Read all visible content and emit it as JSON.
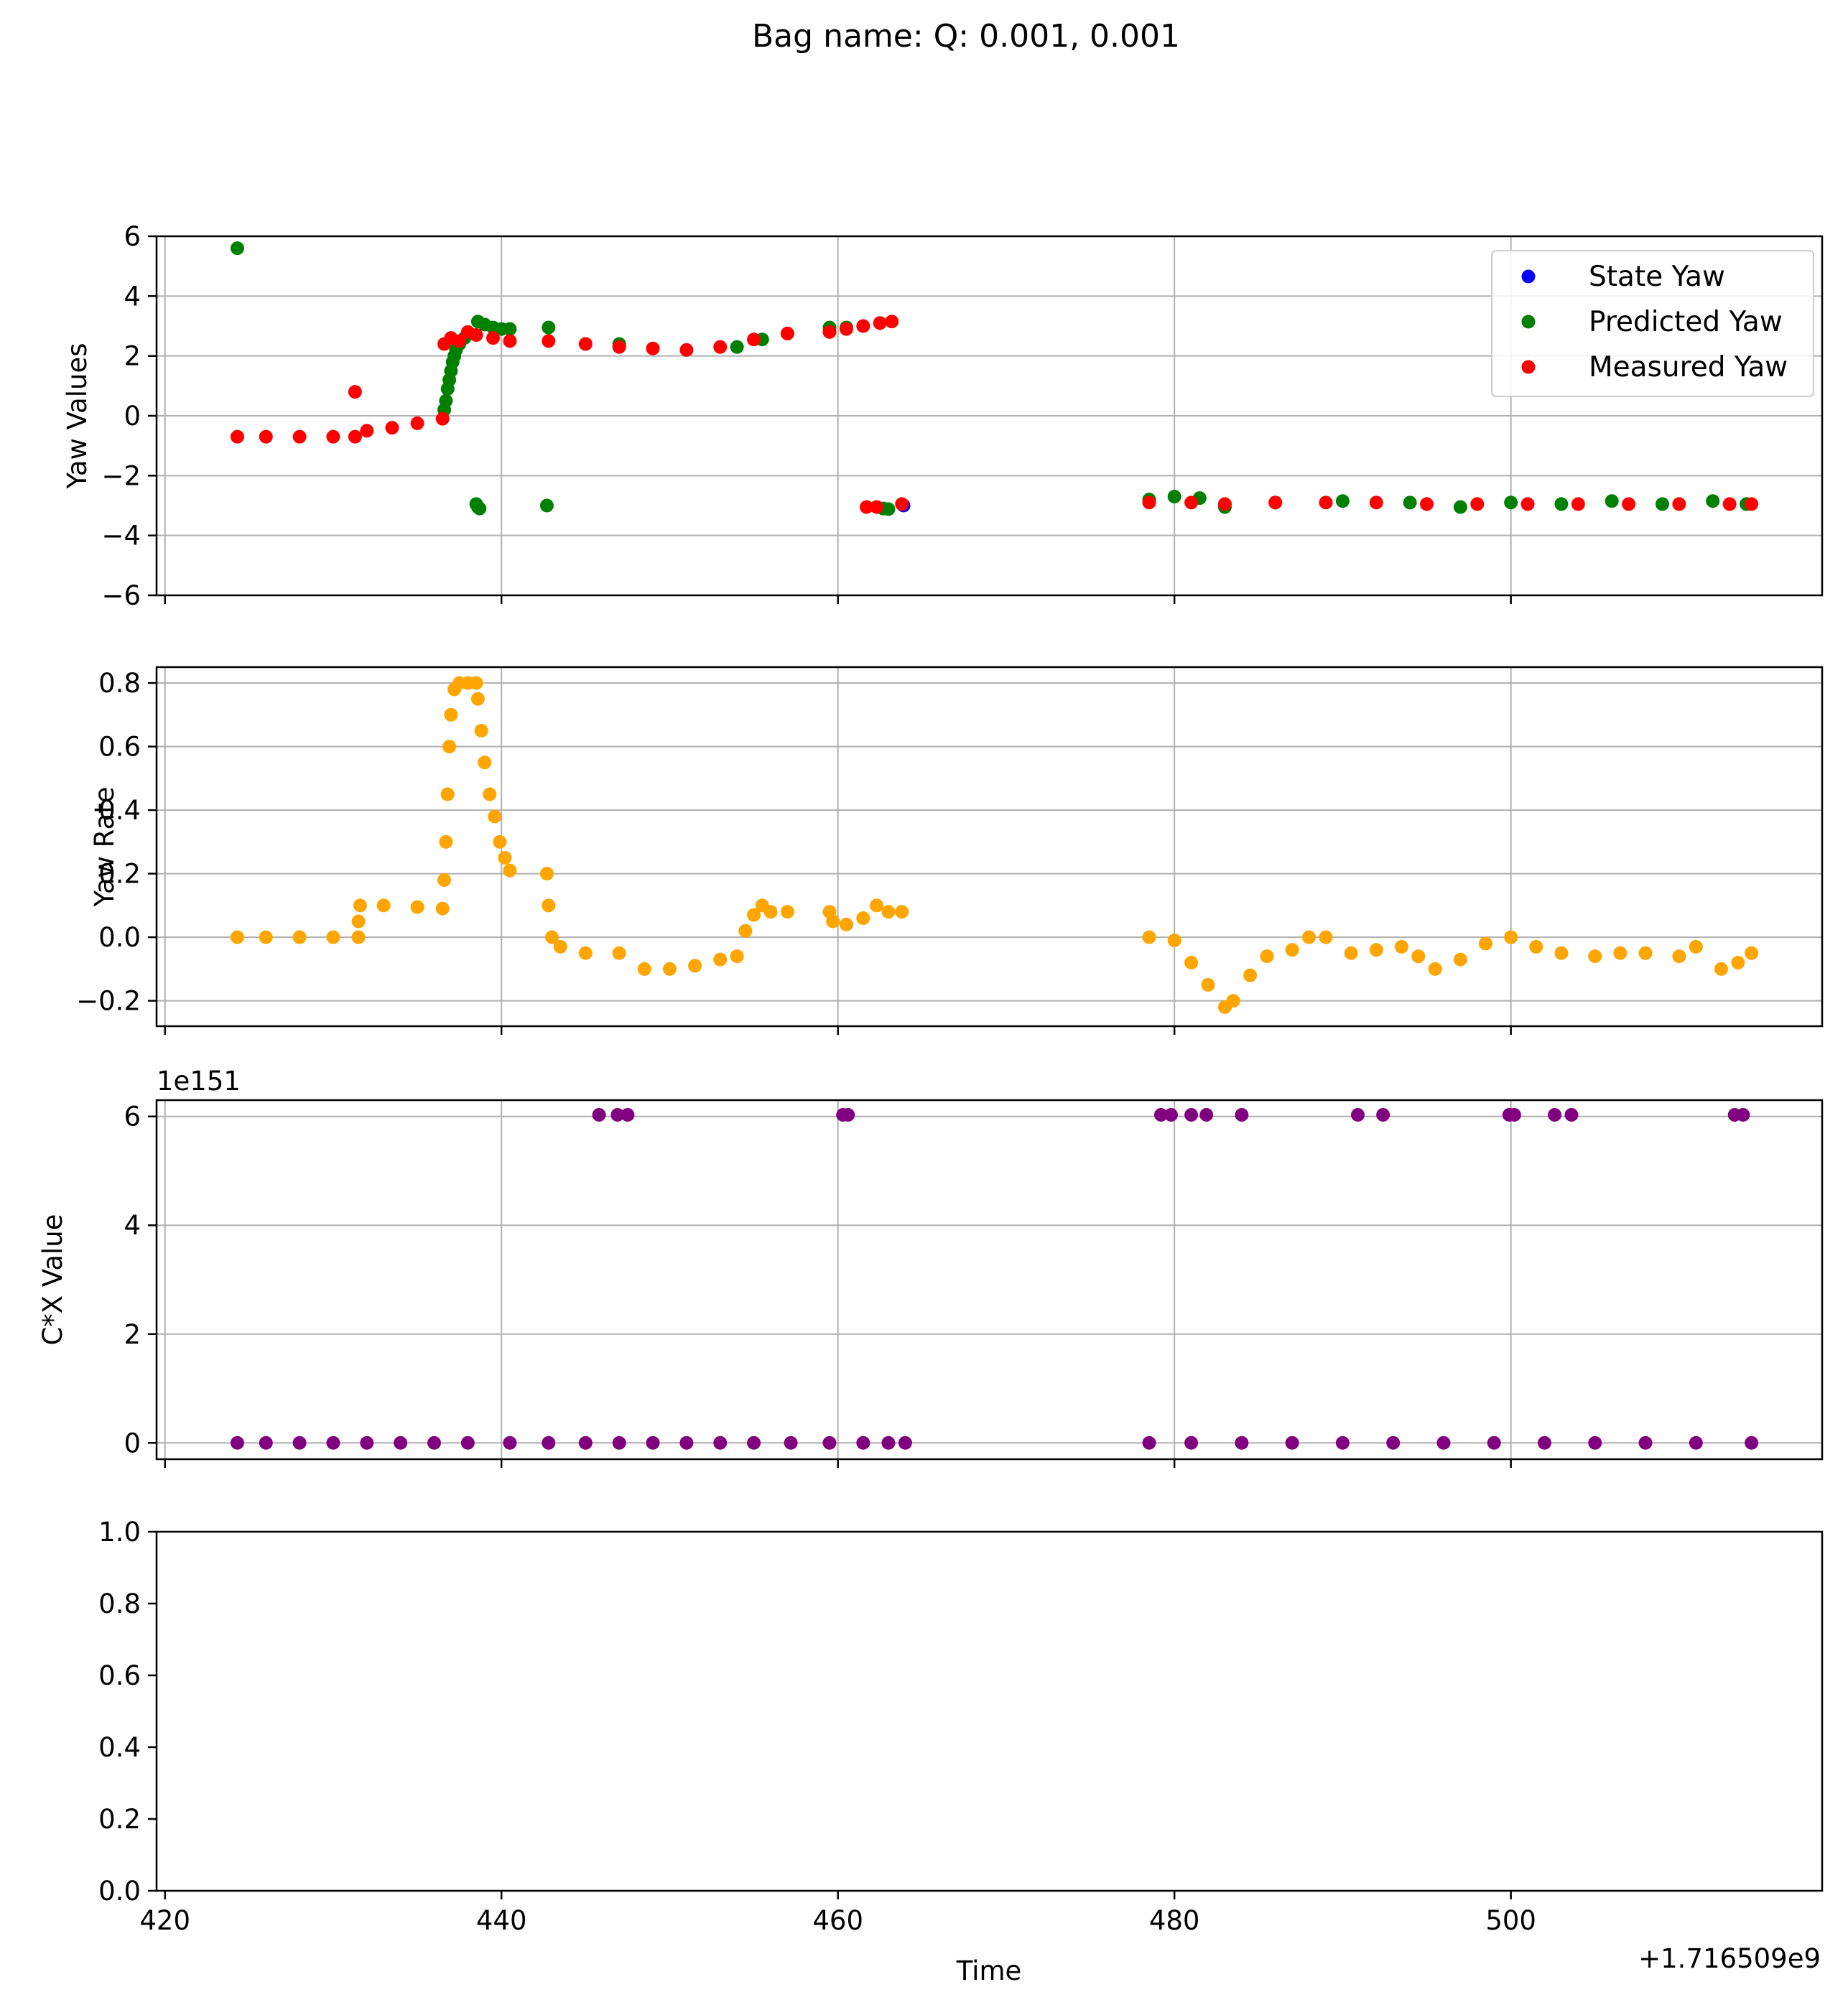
{
  "figure": {
    "title": "Bag name: Q: 0.001, 0.001",
    "xlabel": "Time",
    "x_offset_label": "+1.716509e9"
  },
  "chart_data": [
    {
      "type": "scatter",
      "ylabel": "Yaw Values",
      "xlim": [
        419.5,
        518.5
      ],
      "ylim": [
        -6,
        6
      ],
      "xticks": [
        420,
        440,
        460,
        480,
        500
      ],
      "yticks": [
        6,
        4,
        2,
        0,
        -2,
        -4,
        -6
      ],
      "ytick_labels": [
        "6",
        "4",
        "2",
        "0",
        "−2",
        "−4",
        "−6"
      ],
      "grid": true,
      "legend": {
        "placement": "top-right"
      },
      "series": [
        {
          "name": "State Yaw",
          "color": "#0000ff",
          "points": [
            [
              463.9,
              -3.0
            ]
          ]
        },
        {
          "name": "Predicted Yaw",
          "color": "#008000",
          "points": [
            [
              424.3,
              5.6
            ],
            [
              436.6,
              0.2
            ],
            [
              436.7,
              0.5
            ],
            [
              436.8,
              0.9
            ],
            [
              436.9,
              1.2
            ],
            [
              437.0,
              1.5
            ],
            [
              437.1,
              1.8
            ],
            [
              437.2,
              2.0
            ],
            [
              437.3,
              2.2
            ],
            [
              437.5,
              2.4
            ],
            [
              437.8,
              2.6
            ],
            [
              438.1,
              2.75
            ],
            [
              438.6,
              3.15
            ],
            [
              439.0,
              3.05
            ],
            [
              439.5,
              2.95
            ],
            [
              440.0,
              2.9
            ],
            [
              440.5,
              2.9
            ],
            [
              438.5,
              -2.95
            ],
            [
              438.6,
              -3.05
            ],
            [
              438.7,
              -3.1
            ],
            [
              442.7,
              -3.0
            ],
            [
              442.8,
              2.95
            ],
            [
              447.0,
              2.4
            ],
            [
              454.0,
              2.3
            ],
            [
              455.5,
              2.55
            ],
            [
              457.0,
              2.75
            ],
            [
              459.5,
              2.95
            ],
            [
              460.5,
              2.95
            ],
            [
              462.5,
              3.1
            ],
            [
              462.7,
              -3.1
            ],
            [
              463.0,
              -3.12
            ],
            [
              478.5,
              -2.8
            ],
            [
              480.0,
              -2.7
            ],
            [
              481.5,
              -2.75
            ],
            [
              483.0,
              -3.05
            ],
            [
              486.0,
              -2.9
            ],
            [
              490.0,
              -2.85
            ],
            [
              494.0,
              -2.9
            ],
            [
              497.0,
              -3.05
            ],
            [
              500.0,
              -2.9
            ],
            [
              503.0,
              -2.95
            ],
            [
              506.0,
              -2.85
            ],
            [
              509.0,
              -2.95
            ],
            [
              512.0,
              -2.85
            ],
            [
              514.0,
              -2.95
            ]
          ]
        },
        {
          "name": "Measured Yaw",
          "color": "#ff0000",
          "points": [
            [
              424.3,
              -0.7
            ],
            [
              426.0,
              -0.7
            ],
            [
              428.0,
              -0.7
            ],
            [
              430.0,
              -0.7
            ],
            [
              431.3,
              -0.7
            ],
            [
              431.3,
              0.8
            ],
            [
              432.0,
              -0.5
            ],
            [
              433.5,
              -0.4
            ],
            [
              435.0,
              -0.25
            ],
            [
              436.5,
              -0.1
            ],
            [
              436.6,
              2.4
            ],
            [
              437.0,
              2.6
            ],
            [
              437.5,
              2.5
            ],
            [
              438.0,
              2.8
            ],
            [
              438.5,
              2.7
            ],
            [
              439.5,
              2.6
            ],
            [
              440.5,
              2.5
            ],
            [
              442.8,
              2.5
            ],
            [
              445.0,
              2.4
            ],
            [
              447.0,
              2.3
            ],
            [
              449.0,
              2.25
            ],
            [
              451.0,
              2.2
            ],
            [
              453.0,
              2.3
            ],
            [
              455.0,
              2.55
            ],
            [
              457.0,
              2.75
            ],
            [
              459.5,
              2.8
            ],
            [
              460.5,
              2.9
            ],
            [
              461.5,
              3.0
            ],
            [
              462.5,
              3.1
            ],
            [
              463.2,
              3.15
            ],
            [
              461.7,
              -3.05
            ],
            [
              462.3,
              -3.05
            ],
            [
              463.8,
              -2.95
            ],
            [
              478.5,
              -2.9
            ],
            [
              481.0,
              -2.9
            ],
            [
              483.0,
              -2.95
            ],
            [
              486.0,
              -2.9
            ],
            [
              489.0,
              -2.9
            ],
            [
              492.0,
              -2.9
            ],
            [
              495.0,
              -2.95
            ],
            [
              498.0,
              -2.95
            ],
            [
              501.0,
              -2.95
            ],
            [
              504.0,
              -2.95
            ],
            [
              507.0,
              -2.95
            ],
            [
              510.0,
              -2.95
            ],
            [
              513.0,
              -2.95
            ],
            [
              514.3,
              -2.95
            ]
          ]
        }
      ]
    },
    {
      "type": "scatter",
      "ylabel": "Yaw Rate",
      "xlim": [
        419.5,
        518.5
      ],
      "ylim": [
        -0.28,
        0.85
      ],
      "xticks": [
        420,
        440,
        460,
        480,
        500
      ],
      "yticks": [
        0.8,
        0.6,
        0.4,
        0.2,
        0.0,
        -0.2
      ],
      "ytick_labels": [
        "0.8",
        "0.6",
        "0.4",
        "0.2",
        "0.0",
        "−0.2"
      ],
      "grid": true,
      "series": [
        {
          "name": "",
          "color": "#ffa500",
          "points": [
            [
              424.3,
              0.0
            ],
            [
              426.0,
              0.0
            ],
            [
              428.0,
              0.0
            ],
            [
              430.0,
              0.0
            ],
            [
              431.5,
              0.0
            ],
            [
              431.5,
              0.05
            ],
            [
              431.6,
              0.1
            ],
            [
              433.0,
              0.1
            ],
            [
              435.0,
              0.095
            ],
            [
              436.5,
              0.09
            ],
            [
              436.6,
              0.18
            ],
            [
              436.7,
              0.3
            ],
            [
              436.8,
              0.45
            ],
            [
              436.9,
              0.6
            ],
            [
              437.0,
              0.7
            ],
            [
              437.2,
              0.78
            ],
            [
              437.5,
              0.8
            ],
            [
              438.0,
              0.8
            ],
            [
              438.5,
              0.8
            ],
            [
              438.6,
              0.75
            ],
            [
              438.8,
              0.65
            ],
            [
              439.0,
              0.55
            ],
            [
              439.3,
              0.45
            ],
            [
              439.6,
              0.38
            ],
            [
              439.9,
              0.3
            ],
            [
              440.2,
              0.25
            ],
            [
              440.5,
              0.21
            ],
            [
              442.7,
              0.2
            ],
            [
              442.8,
              0.1
            ],
            [
              443.0,
              0.0
            ],
            [
              443.5,
              -0.03
            ],
            [
              445.0,
              -0.05
            ],
            [
              447.0,
              -0.05
            ],
            [
              448.5,
              -0.1
            ],
            [
              450.0,
              -0.1
            ],
            [
              451.5,
              -0.09
            ],
            [
              453.0,
              -0.07
            ],
            [
              454.0,
              -0.06
            ],
            [
              454.5,
              0.02
            ],
            [
              455.0,
              0.07
            ],
            [
              455.5,
              0.1
            ],
            [
              456.0,
              0.08
            ],
            [
              457.0,
              0.08
            ],
            [
              459.5,
              0.08
            ],
            [
              459.7,
              0.05
            ],
            [
              460.5,
              0.04
            ],
            [
              461.5,
              0.06
            ],
            [
              462.3,
              0.1
            ],
            [
              463.0,
              0.08
            ],
            [
              463.8,
              0.08
            ],
            [
              478.5,
              0.0
            ],
            [
              480.0,
              -0.01
            ],
            [
              481.0,
              -0.08
            ],
            [
              482.0,
              -0.15
            ],
            [
              483.0,
              -0.22
            ],
            [
              483.5,
              -0.2
            ],
            [
              484.5,
              -0.12
            ],
            [
              485.5,
              -0.06
            ],
            [
              487.0,
              -0.04
            ],
            [
              488.0,
              0.0
            ],
            [
              489.0,
              0.0
            ],
            [
              490.5,
              -0.05
            ],
            [
              492.0,
              -0.04
            ],
            [
              493.5,
              -0.03
            ],
            [
              494.5,
              -0.06
            ],
            [
              495.5,
              -0.1
            ],
            [
              497.0,
              -0.07
            ],
            [
              498.5,
              -0.02
            ],
            [
              500.0,
              0.0
            ],
            [
              501.5,
              -0.03
            ],
            [
              503.0,
              -0.05
            ],
            [
              505.0,
              -0.06
            ],
            [
              506.5,
              -0.05
            ],
            [
              508.0,
              -0.05
            ],
            [
              510.0,
              -0.06
            ],
            [
              511.0,
              -0.03
            ],
            [
              512.5,
              -0.1
            ],
            [
              513.5,
              -0.08
            ],
            [
              514.3,
              -0.05
            ]
          ]
        }
      ]
    },
    {
      "type": "scatter",
      "ylabel": "C*X Value",
      "y_offset_label": "1e151",
      "xlim": [
        419.5,
        518.5
      ],
      "ylim": [
        -0.3,
        6.3
      ],
      "xticks": [
        420,
        440,
        460,
        480,
        500
      ],
      "yticks": [
        6,
        4,
        2,
        0
      ],
      "ytick_labels": [
        "6",
        "4",
        "2",
        "0"
      ],
      "grid": true,
      "series": [
        {
          "name": "",
          "color": "#800080",
          "points": [
            [
              424.3,
              0
            ],
            [
              426.0,
              0
            ],
            [
              428.0,
              0
            ],
            [
              430.0,
              0
            ],
            [
              432.0,
              0
            ],
            [
              434.0,
              0
            ],
            [
              436.0,
              0
            ],
            [
              438.0,
              0
            ],
            [
              440.5,
              0
            ],
            [
              442.8,
              0
            ],
            [
              445.0,
              0
            ],
            [
              447.0,
              0
            ],
            [
              449.0,
              0
            ],
            [
              451.0,
              0
            ],
            [
              453.0,
              0
            ],
            [
              455.0,
              0
            ],
            [
              457.2,
              0
            ],
            [
              459.5,
              0
            ],
            [
              461.5,
              0
            ],
            [
              463.0,
              0
            ],
            [
              464.0,
              0
            ],
            [
              478.5,
              0
            ],
            [
              481.0,
              0
            ],
            [
              484.0,
              0
            ],
            [
              487.0,
              0
            ],
            [
              490.0,
              0
            ],
            [
              493.0,
              0
            ],
            [
              496.0,
              0
            ],
            [
              499.0,
              0
            ],
            [
              502.0,
              0
            ],
            [
              505.0,
              0
            ],
            [
              508.0,
              0
            ],
            [
              511.0,
              0
            ],
            [
              514.3,
              0
            ],
            [
              445.8,
              6.03
            ],
            [
              446.9,
              6.03
            ],
            [
              447.5,
              6.03
            ],
            [
              460.3,
              6.03
            ],
            [
              460.6,
              6.03
            ],
            [
              479.2,
              6.03
            ],
            [
              479.8,
              6.03
            ],
            [
              481.0,
              6.03
            ],
            [
              481.9,
              6.03
            ],
            [
              484.0,
              6.03
            ],
            [
              490.9,
              6.03
            ],
            [
              492.4,
              6.03
            ],
            [
              499.9,
              6.03
            ],
            [
              500.2,
              6.03
            ],
            [
              502.6,
              6.03
            ],
            [
              503.6,
              6.03
            ],
            [
              513.3,
              6.03
            ],
            [
              513.8,
              6.03
            ]
          ]
        }
      ]
    },
    {
      "type": "scatter",
      "ylabel": "",
      "xlim": [
        419.5,
        518.5
      ],
      "ylim": [
        0,
        1
      ],
      "xticks": [
        420,
        440,
        460,
        480,
        500
      ],
      "xtick_labels": [
        "420",
        "440",
        "460",
        "480",
        "500"
      ],
      "yticks": [
        1.0,
        0.8,
        0.6,
        0.4,
        0.2,
        0.0
      ],
      "ytick_labels": [
        "1.0",
        "0.8",
        "0.6",
        "0.4",
        "0.2",
        "0.0"
      ],
      "grid": false,
      "series": []
    }
  ]
}
